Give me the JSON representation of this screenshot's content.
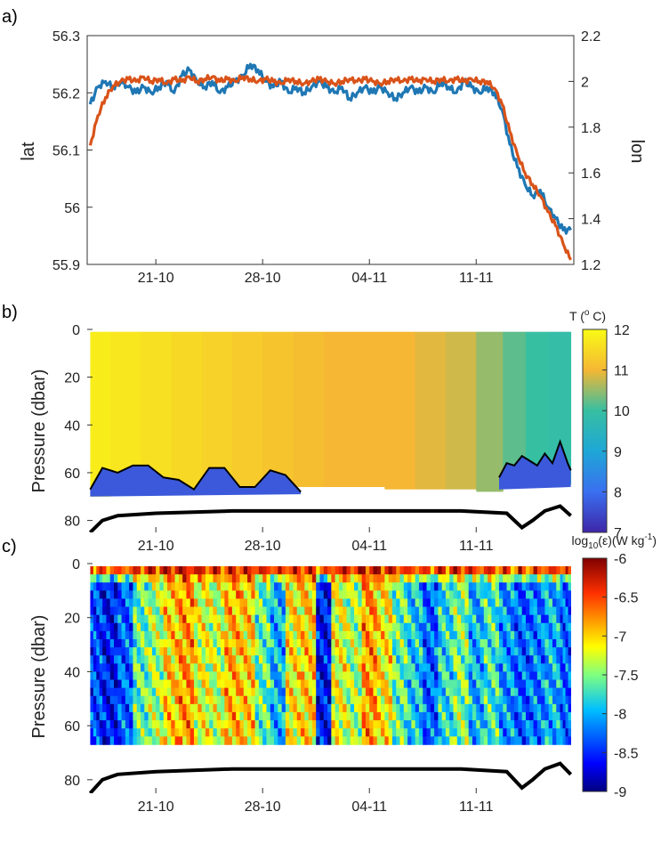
{
  "chart_data": [
    {
      "panel": "a)",
      "type": "line",
      "x_tick_labels": [
        "21-10",
        "28-10",
        "04-11",
        "11-11"
      ],
      "y_left": {
        "label": "lat",
        "lim": [
          55.9,
          56.3
        ],
        "ticks": [
          "55.9",
          "56",
          "56.1",
          "56.2",
          "56.3"
        ],
        "color": "#1f77b4"
      },
      "y_right": {
        "label": "lon",
        "lim": [
          1.2,
          2.2
        ],
        "ticks": [
          "1.2",
          "1.4",
          "1.6",
          "1.8",
          "2",
          "2.2"
        ],
        "color": "#d95319"
      },
      "series": [
        {
          "name": "lat",
          "axis": "left",
          "color": "#1f77b4",
          "day": [
            -4.3,
            -3.8,
            -3.3,
            -2.8,
            -2.3,
            -1.8,
            -1.3,
            -0.8,
            -0.3,
            0.2,
            0.7,
            1.2,
            1.7,
            2.2,
            2.7,
            3.2,
            3.7,
            4.2,
            4.7,
            5.2,
            5.7,
            6.2,
            6.7,
            7.2,
            7.7,
            8.2,
            8.7,
            9.2,
            9.7,
            10.2,
            10.7,
            11.2,
            11.7,
            12.2,
            12.7,
            13.2,
            13.7,
            14.2,
            14.7,
            15.2,
            15.7,
            16.2,
            16.7,
            17.2,
            17.7,
            18.2,
            18.7,
            19.2,
            19.7,
            20.2,
            20.7,
            21.2,
            21.7,
            22.2,
            22.7,
            23.2,
            23.7,
            24.2,
            24.7,
            25.2,
            25.7,
            26.2,
            26.7,
            27.2
          ],
          "values": [
            56.18,
            56.21,
            56.22,
            56.21,
            56.22,
            56.21,
            56.2,
            56.21,
            56.2,
            56.21,
            56.22,
            56.2,
            56.23,
            56.24,
            56.22,
            56.21,
            56.22,
            56.2,
            56.21,
            56.22,
            56.23,
            56.25,
            56.24,
            56.22,
            56.21,
            56.22,
            56.2,
            56.21,
            56.2,
            56.21,
            56.22,
            56.21,
            56.2,
            56.21,
            56.19,
            56.2,
            56.21,
            56.2,
            56.21,
            56.2,
            56.19,
            56.2,
            56.21,
            56.2,
            56.21,
            56.2,
            56.22,
            56.21,
            56.2,
            56.22,
            56.21,
            56.2,
            56.21,
            56.2,
            56.17,
            56.11,
            56.07,
            56.04,
            56.02,
            56.03,
            56.0,
            55.98,
            55.96,
            55.96
          ]
        },
        {
          "name": "lon",
          "axis": "right",
          "color": "#d95319",
          "day": [
            -4.3,
            -3.8,
            -3.3,
            -2.8,
            -2.3,
            -1.8,
            -1.3,
            -0.8,
            -0.3,
            0.2,
            0.7,
            1.2,
            1.7,
            2.2,
            2.7,
            3.2,
            3.7,
            4.2,
            4.7,
            5.2,
            5.7,
            6.2,
            6.7,
            7.2,
            7.7,
            8.2,
            8.7,
            9.2,
            9.7,
            10.2,
            10.7,
            11.2,
            11.7,
            12.2,
            12.7,
            13.2,
            13.7,
            14.2,
            14.7,
            15.2,
            15.7,
            16.2,
            16.7,
            17.2,
            17.7,
            18.2,
            18.7,
            19.2,
            19.7,
            20.2,
            20.7,
            21.2,
            21.7,
            22.2,
            22.7,
            23.2,
            23.7,
            24.2,
            24.7,
            25.2,
            25.7,
            26.2,
            26.7,
            27.2
          ],
          "values": [
            1.72,
            1.85,
            1.93,
            1.98,
            2.0,
            2.01,
            2.0,
            2.02,
            2.0,
            2.01,
            1.99,
            2.01,
            2.0,
            2.02,
            2.0,
            2.01,
            2.02,
            2.0,
            2.01,
            2.0,
            2.02,
            2.01,
            2.0,
            2.01,
            2.0,
            1.99,
            2.01,
            2.0,
            1.99,
            2.0,
            2.01,
            2.0,
            1.99,
            2.0,
            2.01,
            2.0,
            2.01,
            2.0,
            1.99,
            2.0,
            2.01,
            2.0,
            2.01,
            2.0,
            2.01,
            2.0,
            2.01,
            2.0,
            2.01,
            2.0,
            2.01,
            2.0,
            2.0,
            1.97,
            1.9,
            1.78,
            1.68,
            1.6,
            1.55,
            1.5,
            1.43,
            1.37,
            1.29,
            1.22
          ]
        }
      ]
    },
    {
      "panel": "b)",
      "type": "heatmap",
      "x_tick_labels": [
        "21-10",
        "28-10",
        "04-11",
        "11-11"
      ],
      "ylabel": "Pressure (dbar)",
      "ylim": [
        0,
        85
      ],
      "y_ticks": [
        "0",
        "20",
        "40",
        "60",
        "80"
      ],
      "colorbar": {
        "title": "T (",
        "title_sup": "o",
        "title_end": " C)",
        "lim": [
          7,
          12
        ],
        "ticks": [
          "7",
          "8",
          "9",
          "10",
          "11",
          "12"
        ]
      },
      "columns_day": [
        -4.0,
        -2.0,
        0.0,
        2.0,
        4.0,
        6.0,
        8.0,
        10.0,
        12.0,
        14.0,
        16.0,
        18.0,
        20.0,
        22.0,
        23.5,
        25.0,
        26.5
      ],
      "surface_temperature": [
        11.8,
        11.7,
        11.6,
        11.5,
        11.4,
        11.3,
        11.2,
        11.1,
        11.0,
        11.0,
        11.0,
        10.9,
        10.8,
        10.5,
        10.2,
        10.0,
        9.9
      ],
      "bottom_layer_temperature": 7.7,
      "data_bottom_pressure": [
        70,
        69,
        68,
        68,
        68,
        68,
        67,
        66,
        66,
        66,
        67,
        67,
        67,
        68,
        66,
        66,
        65
      ],
      "mixed_layer_depth": {
        "day": [
          -4.3,
          -3.5,
          -2.5,
          -1.5,
          -0.5,
          0.5,
          1.5,
          2.5,
          3.5,
          4.5,
          5.5,
          6.5,
          7.5,
          8.5,
          9.5
        ],
        "pressure": [
          67,
          58,
          60,
          57,
          57,
          62,
          63,
          67,
          58,
          58,
          66,
          66,
          59,
          61,
          68
        ]
      },
      "mixed_layer_depth_2": {
        "day": [
          22.5,
          23.0,
          23.5,
          24.0,
          24.5,
          25.0,
          25.5,
          26.0,
          26.5,
          27.0,
          27.2
        ],
        "pressure": [
          62,
          56,
          57,
          53,
          55,
          57,
          52,
          56,
          47,
          56,
          59
        ]
      },
      "seabed": {
        "day": [
          -4.3,
          -3.5,
          -2.5,
          0.0,
          5.0,
          10.0,
          15.0,
          20.0,
          23.0,
          24.0,
          24.7,
          25.5,
          26.5,
          27.2
        ],
        "pressure": [
          85,
          80,
          78,
          77,
          76,
          76,
          76,
          76,
          77,
          83,
          80,
          76,
          74,
          78
        ]
      }
    },
    {
      "panel": "c)",
      "type": "heatmap",
      "x_tick_labels": [
        "21-10",
        "28-10",
        "04-11",
        "11-11"
      ],
      "ylabel": "Pressure (dbar)",
      "ylim": [
        0,
        85
      ],
      "y_ticks": [
        "0",
        "20",
        "40",
        "60",
        "80"
      ],
      "colorbar": {
        "title": "log",
        "title_sub": "10",
        "title_mid": "(ε)(W kg",
        "title_sup": "-1",
        "title_end": ")",
        "lim": [
          -9,
          -6
        ],
        "ticks": [
          "-9",
          "-8.5",
          "-8",
          "-7.5",
          "-7",
          "-6.5",
          "-6"
        ]
      },
      "columns_day": [
        -4.0,
        -3.0,
        -2.0,
        -1.0,
        0.0,
        1.0,
        2.0,
        3.0,
        4.0,
        5.0,
        6.0,
        7.0,
        8.0,
        9.0,
        10.0,
        11.0,
        12.0,
        13.0,
        14.0,
        15.0,
        16.0,
        17.0,
        18.0,
        19.0,
        20.0,
        21.0,
        22.0,
        23.0,
        24.0,
        25.0,
        26.0,
        27.0
      ],
      "column_mean_log10_epsilon": [
        -8.4,
        -8.6,
        -8.3,
        -7.6,
        -7.4,
        -7.0,
        -6.8,
        -7.2,
        -7.3,
        -6.9,
        -7.0,
        -7.6,
        -8.0,
        -7.1,
        -7.0,
        -8.6,
        -7.2,
        -7.4,
        -6.8,
        -7.1,
        -7.6,
        -7.9,
        -8.3,
        -7.8,
        -7.5,
        -8.0,
        -7.7,
        -8.1,
        -8.3,
        -8.2,
        -8.0,
        -8.3
      ],
      "near_surface_log10_epsilon": -6.2,
      "seabed": {
        "day": [
          -4.3,
          -3.5,
          -2.5,
          0.0,
          5.0,
          10.0,
          15.0,
          20.0,
          23.0,
          24.0,
          24.7,
          25.5,
          26.5,
          27.2
        ],
        "pressure": [
          85,
          80,
          78,
          77,
          76,
          76,
          76,
          76,
          77,
          83,
          80,
          76,
          74,
          78
        ]
      }
    }
  ]
}
